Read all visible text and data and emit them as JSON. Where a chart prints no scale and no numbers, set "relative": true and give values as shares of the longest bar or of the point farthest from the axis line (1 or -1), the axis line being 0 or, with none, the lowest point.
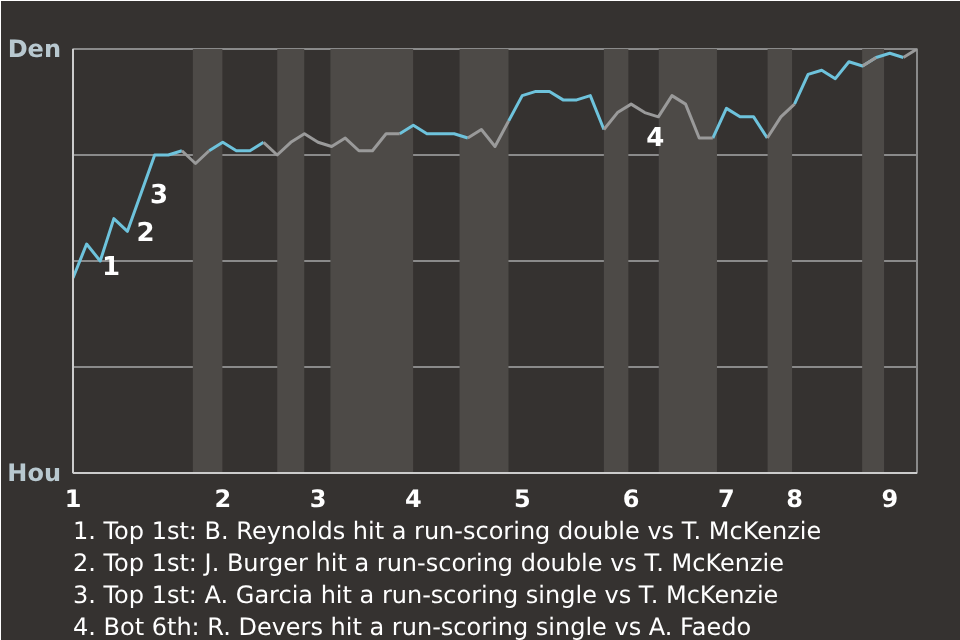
{
  "chart_data": {
    "type": "line",
    "relative": true,
    "categories": [
      "1",
      null,
      null,
      null,
      null,
      null,
      null,
      null,
      null,
      null,
      null,
      "2",
      null,
      null,
      null,
      null,
      null,
      null,
      "3",
      null,
      null,
      null,
      null,
      null,
      null,
      "4",
      null,
      null,
      null,
      null,
      null,
      null,
      null,
      "5",
      null,
      null,
      null,
      null,
      null,
      null,
      null,
      "6",
      null,
      null,
      null,
      null,
      null,
      null,
      "7",
      null,
      null,
      null,
      null,
      "8",
      null,
      null,
      null,
      null,
      null,
      null,
      "9",
      null,
      null
    ],
    "series": [
      {
        "color": "#6ec3dc",
        "values": [
          0.46,
          0.54,
          0.5,
          0.6,
          0.57,
          0.66,
          0.75,
          0.75,
          0.76,
          null,
          0.76,
          0.78,
          0.76,
          0.76,
          0.78,
          null,
          null,
          null,
          null,
          null,
          null,
          null,
          null,
          null,
          0.8,
          0.82,
          0.8,
          0.8,
          0.8,
          0.79,
          null,
          null,
          0.83,
          0.89,
          0.9,
          0.9,
          0.88,
          0.88,
          0.89,
          0.81,
          null,
          null,
          null,
          null,
          null,
          null,
          null,
          0.79,
          0.86,
          0.84,
          0.84,
          0.79,
          null,
          0.87,
          0.94,
          0.95,
          0.93,
          0.97,
          0.96,
          0.98,
          0.99,
          0.98,
          null
        ],
        "name": null
      },
      {
        "color": "#9a9a9a",
        "values": [
          null,
          null,
          null,
          null,
          null,
          null,
          null,
          null,
          0.76,
          0.73,
          0.76,
          null,
          null,
          null,
          0.78,
          0.75,
          0.78,
          0.8,
          0.78,
          0.77,
          0.79,
          0.76,
          0.76,
          0.8,
          0.8,
          null,
          null,
          null,
          null,
          0.79,
          0.81,
          0.77,
          0.83,
          null,
          null,
          null,
          null,
          null,
          null,
          0.81,
          0.85,
          0.87,
          0.85,
          0.84,
          0.89,
          0.87,
          0.79,
          0.79,
          null,
          null,
          null,
          0.79,
          0.84,
          0.87,
          null,
          null,
          null,
          null,
          0.96,
          0.98,
          null,
          0.98,
          1
        ],
        "name": null
      }
    ],
    "grid": "y",
    "annotations": [
      "Den",
      "Hou",
      "1",
      "2",
      "3",
      "4",
      "1. Top 1st: B. Reynolds hit a run-scoring double vs T. McKenzie",
      "2. Top 1st: J. Burger hit a run-scoring double vs T. McKenzie",
      "3. Top 1st: A. Garcia hit a run-scoring single vs T. McKenzie",
      "4. Bot 6th: R. Devers hit a run-scoring single vs A. Faedo"
    ]
  }
}
